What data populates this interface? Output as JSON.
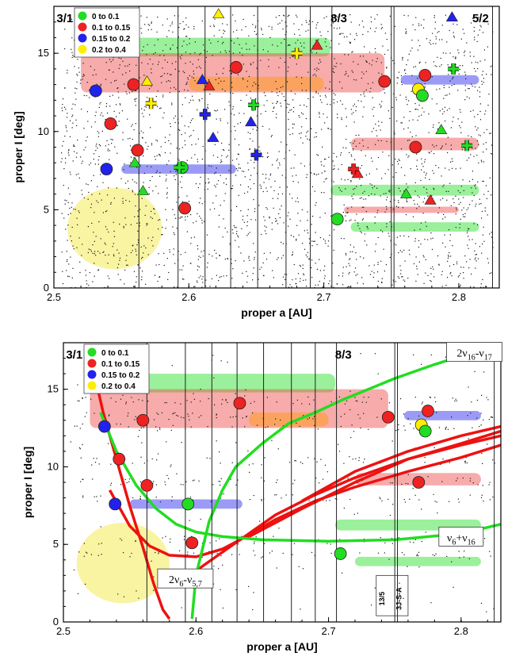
{
  "chart_data": [
    {
      "type": "scatter",
      "xlabel": "proper a [AU]",
      "ylabel": "proper I [deg]",
      "xlim": [
        2.5,
        2.83
      ],
      "ylim": [
        0,
        18
      ],
      "xticks": [
        2.5,
        2.6,
        2.7,
        2.8
      ],
      "xtick_labels": [
        "2.5",
        "2.6",
        "2.7",
        "2.8"
      ],
      "yticks": [
        0,
        5,
        10,
        15
      ],
      "ytick_labels": [
        "0",
        "5",
        "10",
        "15"
      ],
      "resonance_labels": [
        {
          "text": "3/1",
          "x": 2.502,
          "y": 17.6
        },
        {
          "text": "8/3",
          "x": 2.705,
          "y": 17.6
        },
        {
          "text": "5/2",
          "x": 2.81,
          "y": 17.6
        }
      ],
      "resonance_lines": [
        2.563,
        2.592,
        2.612,
        2.631,
        2.651,
        2.672,
        2.69,
        2.706,
        2.75,
        2.752,
        2.825
      ],
      "legend": {
        "placement": "top-left",
        "entries": [
          {
            "label": "0 to 0.1",
            "color": "#22dd22"
          },
          {
            "label": "0.1 to 0.15",
            "color": "#ee2222"
          },
          {
            "label": "0.15 to 0.2",
            "color": "#2222ee"
          },
          {
            "label": "0.2 to 0.4",
            "color": "#ffee00"
          }
        ]
      },
      "family_bands": [
        {
          "color": "#22dd22",
          "x0": 2.525,
          "x1": 2.705,
          "y0": 14.8,
          "y1": 16.0
        },
        {
          "color": "#ee4444",
          "x0": 2.52,
          "x1": 2.745,
          "y0": 12.5,
          "y1": 15.0
        },
        {
          "color": "#ff9900",
          "x0": 2.6,
          "x1": 2.7,
          "y0": 12.6,
          "y1": 13.5
        },
        {
          "color": "#2222ee",
          "x0": 2.757,
          "x1": 2.815,
          "y0": 13.0,
          "y1": 13.6
        },
        {
          "color": "#ee4444",
          "x0": 2.72,
          "x1": 2.815,
          "y0": 8.8,
          "y1": 9.6
        },
        {
          "color": "#2222ee",
          "x0": 2.55,
          "x1": 2.635,
          "y0": 7.3,
          "y1": 7.9
        },
        {
          "color": "#22dd22",
          "x0": 2.705,
          "x1": 2.815,
          "y0": 5.9,
          "y1": 6.6
        },
        {
          "color": "#ee4444",
          "x0": 2.715,
          "x1": 2.8,
          "y0": 4.8,
          "y1": 5.2
        },
        {
          "color": "#22dd22",
          "x0": 2.72,
          "x1": 2.815,
          "y0": 3.6,
          "y1": 4.2
        }
      ],
      "ellipse": {
        "color": "#f7f07a",
        "cx": 2.545,
        "cy": 3.8,
        "rx": 0.035,
        "ry": 2.6
      },
      "circles": [
        {
          "x": 2.531,
          "y": 12.6,
          "color": "#2222ee"
        },
        {
          "x": 2.539,
          "y": 7.6,
          "color": "#2222ee"
        },
        {
          "x": 2.542,
          "y": 10.5,
          "color": "#ee2222"
        },
        {
          "x": 2.559,
          "y": 13.0,
          "color": "#ee2222"
        },
        {
          "x": 2.562,
          "y": 8.8,
          "color": "#ee2222"
        },
        {
          "x": 2.597,
          "y": 5.1,
          "color": "#ee2222"
        },
        {
          "x": 2.595,
          "y": 7.7,
          "color": "#22dd22"
        },
        {
          "x": 2.635,
          "y": 14.1,
          "color": "#ee2222"
        },
        {
          "x": 2.71,
          "y": 4.4,
          "color": "#22dd22"
        },
        {
          "x": 2.745,
          "y": 13.2,
          "color": "#ee2222"
        },
        {
          "x": 2.768,
          "y": 9.0,
          "color": "#ee2222"
        },
        {
          "x": 2.775,
          "y": 13.6,
          "color": "#ee2222"
        },
        {
          "x": 2.77,
          "y": 12.7,
          "color": "#ffee00"
        },
        {
          "x": 2.773,
          "y": 12.3,
          "color": "#22dd22"
        }
      ],
      "triangles": [
        {
          "x": 2.622,
          "y": 17.5,
          "color": "#ffee00"
        },
        {
          "x": 2.795,
          "y": 17.3,
          "color": "#2222ee"
        },
        {
          "x": 2.569,
          "y": 13.2,
          "color": "#ffee00"
        },
        {
          "x": 2.61,
          "y": 13.3,
          "color": "#2222ee"
        },
        {
          "x": 2.615,
          "y": 12.9,
          "color": "#ee2222"
        },
        {
          "x": 2.695,
          "y": 15.5,
          "color": "#ee2222"
        },
        {
          "x": 2.646,
          "y": 10.6,
          "color": "#2222ee"
        },
        {
          "x": 2.618,
          "y": 9.6,
          "color": "#2222ee"
        },
        {
          "x": 2.56,
          "y": 8.0,
          "color": "#22dd22"
        },
        {
          "x": 2.566,
          "y": 6.2,
          "color": "#22dd22"
        },
        {
          "x": 2.787,
          "y": 10.1,
          "color": "#22dd22"
        },
        {
          "x": 2.761,
          "y": 6.0,
          "color": "#22dd22"
        },
        {
          "x": 2.725,
          "y": 7.3,
          "color": "#ee2222"
        },
        {
          "x": 2.779,
          "y": 5.6,
          "color": "#ee2222"
        }
      ],
      "crosses": [
        {
          "x": 2.68,
          "y": 15.0,
          "color": "#ffee00"
        },
        {
          "x": 2.572,
          "y": 11.8,
          "color": "#ffee00"
        },
        {
          "x": 2.612,
          "y": 11.1,
          "color": "#2222ee"
        },
        {
          "x": 2.648,
          "y": 11.7,
          "color": "#22dd22"
        },
        {
          "x": 2.65,
          "y": 8.5,
          "color": "#2222ee"
        },
        {
          "x": 2.593,
          "y": 7.7,
          "color": "#22dd22"
        },
        {
          "x": 2.722,
          "y": 7.6,
          "color": "#ee2222"
        },
        {
          "x": 2.796,
          "y": 14.0,
          "color": "#22dd22"
        },
        {
          "x": 2.806,
          "y": 9.1,
          "color": "#22dd22"
        }
      ]
    },
    {
      "type": "line",
      "xlabel": "proper a [AU]",
      "ylabel": "proper I [deg]",
      "xlim": [
        2.5,
        2.83
      ],
      "ylim": [
        0,
        18
      ],
      "xticks": [
        2.5,
        2.6,
        2.7,
        2.8
      ],
      "xtick_labels": [
        "2.5",
        "2.6",
        "2.7",
        "2.8"
      ],
      "yticks": [
        0,
        5,
        10,
        15
      ],
      "ytick_labels": [
        "0",
        "5",
        "10",
        "15"
      ],
      "resonance_labels": [
        {
          "text": "3/1",
          "x": 2.502,
          "y": 17.6
        },
        {
          "text": "8/3",
          "x": 2.705,
          "y": 17.6
        },
        {
          "text": "5/2",
          "x": 2.81,
          "y": 17.6
        }
      ],
      "resonance_lines": [
        2.563,
        2.592,
        2.612,
        2.631,
        2.651,
        2.672,
        2.69,
        2.706,
        2.75,
        2.752,
        2.825
      ],
      "legend": {
        "placement": "top-left",
        "entries": [
          {
            "label": "0 to 0.1",
            "color": "#22dd22"
          },
          {
            "label": "0.1 to 0.15",
            "color": "#ee2222"
          },
          {
            "label": "0.15 to 0.2",
            "color": "#2222ee"
          },
          {
            "label": "0.2 to 0.4",
            "color": "#ffee00"
          }
        ]
      },
      "family_bands": [
        {
          "color": "#22dd22",
          "x0": 2.525,
          "x1": 2.705,
          "y0": 14.8,
          "y1": 16.0
        },
        {
          "color": "#ee4444",
          "x0": 2.52,
          "x1": 2.745,
          "y0": 12.5,
          "y1": 15.0
        },
        {
          "color": "#ff9900",
          "x0": 2.64,
          "x1": 2.7,
          "y0": 12.6,
          "y1": 13.5
        },
        {
          "color": "#2222ee",
          "x0": 2.757,
          "x1": 2.815,
          "y0": 13.0,
          "y1": 13.6
        },
        {
          "color": "#ee4444",
          "x0": 2.72,
          "x1": 2.815,
          "y0": 8.8,
          "y1": 9.6
        },
        {
          "color": "#2222ee",
          "x0": 2.55,
          "x1": 2.635,
          "y0": 7.3,
          "y1": 7.9
        },
        {
          "color": "#22dd22",
          "x0": 2.705,
          "x1": 2.815,
          "y0": 5.9,
          "y1": 6.6
        },
        {
          "color": "#22dd22",
          "x0": 2.72,
          "x1": 2.815,
          "y0": 3.6,
          "y1": 4.2
        }
      ],
      "ellipse": {
        "color": "#f7f07a",
        "cx": 2.545,
        "cy": 3.8,
        "rx": 0.035,
        "ry": 2.6
      },
      "circles": [
        {
          "x": 2.531,
          "y": 12.6,
          "color": "#2222ee"
        },
        {
          "x": 2.539,
          "y": 7.6,
          "color": "#2222ee"
        },
        {
          "x": 2.542,
          "y": 10.5,
          "color": "#ee2222"
        },
        {
          "x": 2.56,
          "y": 13.0,
          "color": "#ee2222"
        },
        {
          "x": 2.563,
          "y": 8.8,
          "color": "#ee2222"
        },
        {
          "x": 2.597,
          "y": 5.1,
          "color": "#ee2222"
        },
        {
          "x": 2.594,
          "y": 7.6,
          "color": "#22dd22"
        },
        {
          "x": 2.633,
          "y": 14.1,
          "color": "#ee2222"
        },
        {
          "x": 2.709,
          "y": 4.4,
          "color": "#22dd22"
        },
        {
          "x": 2.745,
          "y": 13.2,
          "color": "#ee2222"
        },
        {
          "x": 2.768,
          "y": 9.0,
          "color": "#ee2222"
        },
        {
          "x": 2.775,
          "y": 13.6,
          "color": "#ee2222"
        },
        {
          "x": 2.77,
          "y": 12.7,
          "color": "#ffee00"
        },
        {
          "x": 2.773,
          "y": 12.3,
          "color": "#22dd22"
        }
      ],
      "resonance_curves": [
        {
          "color": "#ee1111",
          "x": [
            2.522,
            2.53,
            2.54,
            2.55,
            2.56,
            2.568,
            2.575,
            2.58
          ],
          "y": [
            16.5,
            13.5,
            10.5,
            7.5,
            4.8,
            2.5,
            0.8,
            0.2
          ]
        },
        {
          "color": "#ee1111",
          "x": [
            2.535,
            2.55,
            2.565,
            2.58,
            2.6,
            2.62,
            2.64,
            2.66,
            2.69,
            2.72,
            2.76,
            2.8,
            2.83
          ],
          "y": [
            8.5,
            6.2,
            4.9,
            4.3,
            4.2,
            4.7,
            5.6,
            6.6,
            7.8,
            8.7,
            9.7,
            10.6,
            11.4
          ]
        },
        {
          "color": "#ee1111",
          "x": [
            2.6,
            2.62,
            2.64,
            2.66,
            2.69,
            2.72,
            2.76,
            2.8,
            2.83
          ],
          "y": [
            3.3,
            4.5,
            5.7,
            6.9,
            8.2,
            9.3,
            10.5,
            11.4,
            12.0
          ]
        },
        {
          "color": "#ee1111",
          "x": [
            2.64,
            2.68,
            2.72,
            2.76,
            2.8,
            2.83
          ],
          "y": [
            5.5,
            7.3,
            9.0,
            10.5,
            11.5,
            12.3
          ]
        },
        {
          "color": "#ee1111",
          "x": [
            2.68,
            2.72,
            2.76,
            2.8,
            2.83
          ],
          "y": [
            7.8,
            9.7,
            11.0,
            12.0,
            12.6
          ]
        },
        {
          "color": "#22dd22",
          "x": [
            2.528,
            2.54,
            2.555,
            2.57,
            2.585,
            2.6,
            2.62,
            2.65,
            2.7,
            2.75,
            2.8,
            2.83
          ],
          "y": [
            13.5,
            11.0,
            8.8,
            7.3,
            6.3,
            5.8,
            5.5,
            5.3,
            5.2,
            5.3,
            5.7,
            6.3
          ]
        },
        {
          "color": "#22dd22",
          "x": [
            2.597,
            2.6,
            2.61,
            2.62,
            2.63,
            2.65,
            2.67,
            2.69,
            2.71,
            2.73,
            2.75,
            2.78,
            2.81,
            2.83
          ],
          "y": [
            0.2,
            3.0,
            6.5,
            8.5,
            10.0,
            11.5,
            12.8,
            13.5,
            14.3,
            15.0,
            15.7,
            16.6,
            17.4,
            17.9
          ]
        }
      ],
      "annotations": [
        {
          "text": "2ν16-ν17",
          "x": 2.81,
          "y": 17.2
        },
        {
          "text": "ν6+ν16",
          "x": 2.8,
          "y": 5.3
        },
        {
          "text": "2ν6-ν5,7",
          "x": 2.592,
          "y": 2.6
        },
        {
          "text": "13/5",
          "x": 2.742,
          "y": 1.5
        },
        {
          "text": "3J-S-A",
          "x": 2.755,
          "y": 1.5
        }
      ]
    }
  ]
}
